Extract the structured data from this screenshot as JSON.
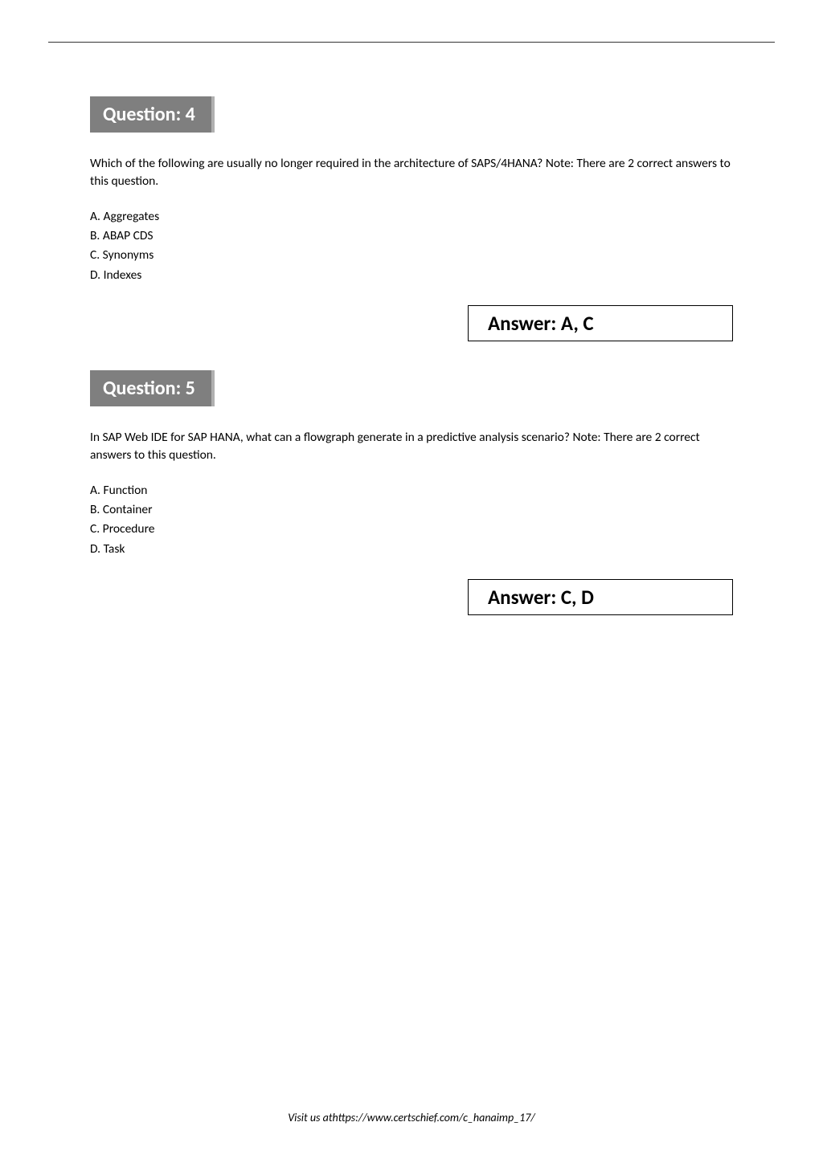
{
  "questions": [
    {
      "header": "Question: 4",
      "text": "Which of the following are usually no longer required in the architecture of SAPS/4HANA? Note: There are 2 correct answers to this question.",
      "options": [
        "A. Aggregates",
        "B. ABAP CDS",
        "C. Synonyms",
        "D. Indexes"
      ],
      "answer": "Answer: A, C"
    },
    {
      "header": "Question: 5",
      "text": "In SAP Web IDE for SAP HANA, what can a flowgraph generate in a predictive analysis scenario? Note: There are 2 correct answers to this question.",
      "options": [
        "A. Function",
        "B. Container",
        "C. Procedure",
        "D. Task"
      ],
      "answer": "Answer: C, D"
    }
  ],
  "footer": "Visit us athttps://www.certschief.com/c_hanaimp_17/"
}
